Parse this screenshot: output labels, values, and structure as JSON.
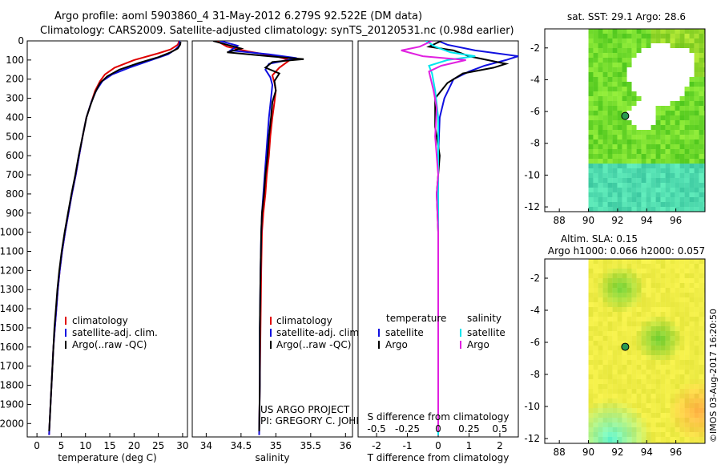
{
  "header": {
    "line1": "Argo profile: aoml 5903860_4 31-May-2012 6.279S 92.522E (DM data)",
    "line2": "Climatology: CARS2009. Satellite-adjusted climatology: synTS_20120531.nc (0.98d earlier)"
  },
  "colors": {
    "climatology": "#e00000",
    "satellite": "#1010e0",
    "argo": "#000000",
    "sal_satellite": "#00e5ee",
    "sal_argo": "#e020e0"
  },
  "chart_data": [
    {
      "type": "line",
      "id": "temperature",
      "xlabel": "temperature (deg C)",
      "ylabel": "",
      "xlim": [
        -2,
        31
      ],
      "ylim": [
        2070,
        0
      ],
      "xticks": [
        0,
        5,
        10,
        15,
        20,
        25,
        30
      ],
      "yticks": [
        0,
        100,
        200,
        300,
        400,
        500,
        600,
        700,
        800,
        900,
        1000,
        1100,
        1200,
        1300,
        1400,
        1500,
        1600,
        1700,
        1800,
        1900,
        2000
      ],
      "legend": [
        "climatology",
        "satellite-adj. clim.",
        "Argo(..raw -QC)"
      ],
      "series": [
        {
          "name": "climatology",
          "color": "#e00000",
          "points": [
            [
              29.3,
              0
            ],
            [
              29,
              20
            ],
            [
              27.5,
              45
            ],
            [
              25,
              65
            ],
            [
              20,
              100
            ],
            [
              16,
              140
            ],
            [
              14,
              175
            ],
            [
              13,
              210
            ],
            [
              12,
              260
            ],
            [
              11.2,
              320
            ],
            [
              10.2,
              400
            ],
            [
              9.4,
              500
            ],
            [
              8.7,
              600
            ],
            [
              8,
              700
            ],
            [
              7.2,
              800
            ],
            [
              6.5,
              900
            ],
            [
              5.8,
              1000
            ],
            [
              5.2,
              1100
            ],
            [
              4.7,
              1200
            ],
            [
              4.3,
              1300
            ],
            [
              4,
              1400
            ],
            [
              3.7,
              1500
            ],
            [
              3.4,
              1600
            ],
            [
              3.2,
              1700
            ],
            [
              3,
              1800
            ],
            [
              2.8,
              1900
            ],
            [
              2.6,
              2000
            ],
            [
              2.5,
              2060
            ]
          ]
        },
        {
          "name": "satellite",
          "color": "#1010e0",
          "points": [
            [
              29.4,
              0
            ],
            [
              29.3,
              25
            ],
            [
              28.5,
              45
            ],
            [
              27,
              70
            ],
            [
              23,
              105
            ],
            [
              19,
              140
            ],
            [
              15.5,
              175
            ],
            [
              13.5,
              210
            ],
            [
              12.2,
              260
            ],
            [
              11.2,
              320
            ],
            [
              10.2,
              400
            ],
            [
              9.4,
              500
            ],
            [
              8.7,
              600
            ],
            [
              8,
              700
            ],
            [
              7.2,
              800
            ],
            [
              6.5,
              900
            ],
            [
              5.8,
              1000
            ],
            [
              5.2,
              1100
            ],
            [
              4.7,
              1200
            ],
            [
              4.3,
              1300
            ],
            [
              4,
              1400
            ],
            [
              3.7,
              1500
            ],
            [
              3.4,
              1600
            ],
            [
              3.2,
              1700
            ],
            [
              3,
              1800
            ],
            [
              2.8,
              1900
            ],
            [
              2.6,
              2000
            ],
            [
              2.5,
              2060
            ]
          ]
        },
        {
          "name": "argo",
          "color": "#000000",
          "points": [
            [
              29.6,
              5
            ],
            [
              29.5,
              20
            ],
            [
              29,
              40
            ],
            [
              27.5,
              60
            ],
            [
              25,
              85
            ],
            [
              21,
              115
            ],
            [
              17,
              150
            ],
            [
              14.5,
              185
            ],
            [
              13,
              220
            ],
            [
              12,
              270
            ],
            [
              11.1,
              330
            ],
            [
              10.2,
              400
            ],
            [
              9.4,
              500
            ],
            [
              8.6,
              600
            ],
            [
              7.9,
              700
            ],
            [
              7.1,
              800
            ],
            [
              6.4,
              900
            ],
            [
              5.7,
              1000
            ],
            [
              5.1,
              1100
            ],
            [
              4.6,
              1200
            ],
            [
              4.2,
              1300
            ],
            [
              3.9,
              1400
            ],
            [
              3.6,
              1500
            ],
            [
              3.4,
              1600
            ],
            [
              3.2,
              1700
            ],
            [
              3,
              1800
            ],
            [
              2.8,
              1900
            ],
            [
              2.6,
              2000
            ],
            [
              2.5,
              2040
            ]
          ]
        }
      ]
    },
    {
      "type": "line",
      "id": "salinity",
      "xlabel": "salinity",
      "ylabel": "",
      "xlim": [
        33.8,
        36.1
      ],
      "ylim": [
        2070,
        0
      ],
      "xticks": [
        34,
        34.5,
        35,
        35.5,
        36
      ],
      "legend": [
        "climatology",
        "satellite-adj. clim.",
        "Argo(..raw -QC)"
      ],
      "annotation": [
        "US ARGO PROJECT",
        "PI: GREGORY C. JOHNSON"
      ],
      "series": [
        {
          "name": "climatology",
          "color": "#e00000",
          "points": [
            [
              34.15,
              0
            ],
            [
              34.3,
              30
            ],
            [
              34.6,
              55
            ],
            [
              35,
              80
            ],
            [
              35.2,
              100
            ],
            [
              35.05,
              140
            ],
            [
              34.95,
              180
            ],
            [
              34.98,
              220
            ],
            [
              35,
              260
            ],
            [
              34.98,
              320
            ],
            [
              34.95,
              400
            ],
            [
              34.92,
              500
            ],
            [
              34.9,
              600
            ],
            [
              34.87,
              700
            ],
            [
              34.85,
              800
            ],
            [
              34.82,
              900
            ],
            [
              34.8,
              1000
            ],
            [
              34.79,
              1200
            ],
            [
              34.78,
              1500
            ],
            [
              34.77,
              1800
            ],
            [
              34.76,
              2060
            ]
          ]
        },
        {
          "name": "satellite",
          "color": "#1010e0",
          "points": [
            [
              34.2,
              0
            ],
            [
              34.45,
              25
            ],
            [
              34.35,
              50
            ],
            [
              34.9,
              70
            ],
            [
              35.3,
              90
            ],
            [
              34.9,
              120
            ],
            [
              34.85,
              150
            ],
            [
              34.92,
              190
            ],
            [
              34.95,
              230
            ],
            [
              34.93,
              300
            ],
            [
              34.9,
              400
            ],
            [
              34.88,
              500
            ],
            [
              34.86,
              600
            ],
            [
              34.84,
              700
            ],
            [
              34.82,
              800
            ],
            [
              34.8,
              900
            ],
            [
              34.79,
              1000
            ],
            [
              34.78,
              1200
            ],
            [
              34.77,
              1500
            ],
            [
              34.77,
              1800
            ],
            [
              34.76,
              2060
            ]
          ]
        },
        {
          "name": "argo",
          "color": "#000000",
          "points": [
            [
              34.1,
              0
            ],
            [
              34.3,
              20
            ],
            [
              34.5,
              40
            ],
            [
              34.3,
              60
            ],
            [
              34.9,
              80
            ],
            [
              35.4,
              95
            ],
            [
              34.95,
              110
            ],
            [
              34.85,
              140
            ],
            [
              35.05,
              170
            ],
            [
              34.98,
              210
            ],
            [
              35,
              260
            ],
            [
              34.95,
              320
            ],
            [
              34.93,
              400
            ],
            [
              34.9,
              500
            ],
            [
              34.88,
              600
            ],
            [
              34.85,
              700
            ],
            [
              34.83,
              800
            ],
            [
              34.8,
              900
            ],
            [
              34.79,
              1000
            ],
            [
              34.78,
              1200
            ],
            [
              34.77,
              1500
            ],
            [
              34.77,
              1800
            ],
            [
              34.76,
              2040
            ]
          ]
        }
      ]
    },
    {
      "type": "line",
      "id": "difference",
      "xlabel": "T difference from climatology",
      "xlabel_top": "S difference from climatology",
      "xlim": [
        -2.6,
        2.6
      ],
      "ylim": [
        2070,
        0
      ],
      "xticks": [
        -2,
        -1,
        0,
        1,
        2
      ],
      "sticks": [
        "-0.5",
        "-0.25",
        "0",
        "0.25",
        "0.5"
      ],
      "legend_headers": [
        "temperature",
        "salinity"
      ],
      "legend": [
        "satellite",
        "Argo",
        "satellite",
        "Argo"
      ],
      "series": [
        {
          "name": "T satellite",
          "color": "#1010e0",
          "points": [
            [
              0,
              0
            ],
            [
              0.3,
              20
            ],
            [
              1.2,
              50
            ],
            [
              2.6,
              80
            ],
            [
              2.2,
              100
            ],
            [
              1.5,
              130
            ],
            [
              1,
              160
            ],
            [
              0.5,
              200
            ],
            [
              0.2,
              300
            ],
            [
              0.05,
              400
            ],
            [
              0,
              600
            ],
            [
              0,
              1000
            ],
            [
              0,
              2060
            ]
          ]
        },
        {
          "name": "T argo",
          "color": "#000000",
          "points": [
            [
              0.1,
              0
            ],
            [
              -0.3,
              30
            ],
            [
              0.5,
              50
            ],
            [
              1,
              80
            ],
            [
              2.2,
              120
            ],
            [
              1.8,
              140
            ],
            [
              0.8,
              170
            ],
            [
              0.3,
              220
            ],
            [
              -0.1,
              300
            ],
            [
              -0.1,
              450
            ],
            [
              0.05,
              600
            ],
            [
              -0.05,
              800
            ],
            [
              0,
              1000
            ],
            [
              0,
              1500
            ],
            [
              0,
              2040
            ]
          ]
        },
        {
          "name": "S satellite",
          "color": "#00e5ee",
          "points": [
            [
              -0.4,
              0
            ],
            [
              -0.1,
              30
            ],
            [
              0.4,
              60
            ],
            [
              1.2,
              80
            ],
            [
              0.3,
              100
            ],
            [
              -0.3,
              130
            ],
            [
              -0.2,
              170
            ],
            [
              -0.1,
              260
            ],
            [
              0,
              400
            ],
            [
              0,
              700
            ],
            [
              0,
              1000
            ],
            [
              0,
              2060
            ]
          ]
        },
        {
          "name": "S argo",
          "color": "#e020e0",
          "points": [
            [
              -0.2,
              0
            ],
            [
              -0.6,
              30
            ],
            [
              -1.2,
              50
            ],
            [
              -0.5,
              80
            ],
            [
              0.9,
              100
            ],
            [
              0.1,
              130
            ],
            [
              -0.3,
              160
            ],
            [
              -0.15,
              260
            ],
            [
              -0.05,
              350
            ],
            [
              -0.1,
              500
            ],
            [
              0,
              700
            ],
            [
              -0.05,
              800
            ],
            [
              0,
              1000
            ],
            [
              0,
              2040
            ]
          ]
        }
      ]
    },
    {
      "type": "heatmap",
      "id": "sst_map",
      "title": "sat. SST: 29.1  Argo: 28.6",
      "xlim": [
        87,
        98
      ],
      "ylim": [
        -12.3,
        -0.8
      ],
      "xticks": [
        88,
        90,
        92,
        94,
        96
      ],
      "yticks": [
        -2,
        -4,
        -6,
        -8,
        -10,
        -12
      ],
      "marker": [
        92.522,
        -6.279
      ]
    },
    {
      "type": "heatmap",
      "id": "sla_map",
      "title": "Altim. SLA: 0.15",
      "subtitle": "Argo h1000: 0.066 h2000: 0.057",
      "xlim": [
        87,
        98
      ],
      "ylim": [
        -12.3,
        -0.8
      ],
      "xticks": [
        88,
        90,
        92,
        94,
        96
      ],
      "yticks": [
        -2,
        -4,
        -6,
        -8,
        -10,
        -12
      ],
      "marker": [
        92.522,
        -6.279
      ]
    }
  ],
  "footer": {
    "stamp": "©IMOS 03-Aug-2017 16:20:50"
  }
}
